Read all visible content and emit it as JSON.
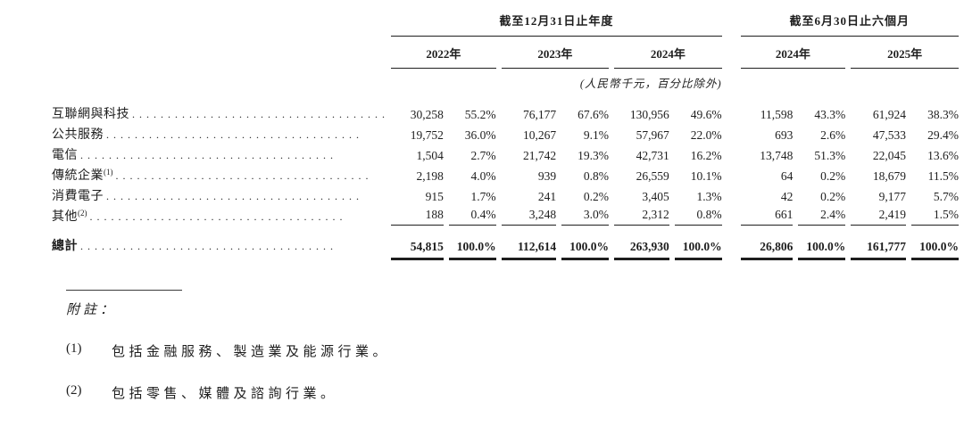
{
  "table": {
    "period_groups": [
      {
        "label": "截至12月31日止年度",
        "years": [
          "2022年",
          "2023年",
          "2024年"
        ]
      },
      {
        "label": "截至6月30日止六個月",
        "years": [
          "2024年",
          "2025年"
        ]
      }
    ],
    "unit_note": "(人民幣千元，百分比除外)",
    "rows": [
      {
        "label": "互聯網與科技",
        "sup": "",
        "values": [
          "30,258",
          "55.2%",
          "76,177",
          "67.6%",
          "130,956",
          "49.6%",
          "11,598",
          "43.3%",
          "61,924",
          "38.3%"
        ]
      },
      {
        "label": "公共服務",
        "sup": "",
        "values": [
          "19,752",
          "36.0%",
          "10,267",
          "9.1%",
          "57,967",
          "22.0%",
          "693",
          "2.6%",
          "47,533",
          "29.4%"
        ]
      },
      {
        "label": "電信",
        "sup": "",
        "values": [
          "1,504",
          "2.7%",
          "21,742",
          "19.3%",
          "42,731",
          "16.2%",
          "13,748",
          "51.3%",
          "22,045",
          "13.6%"
        ]
      },
      {
        "label": "傳統企業",
        "sup": "(1)",
        "values": [
          "2,198",
          "4.0%",
          "939",
          "0.8%",
          "26,559",
          "10.1%",
          "64",
          "0.2%",
          "18,679",
          "11.5%"
        ]
      },
      {
        "label": "消費電子",
        "sup": "",
        "values": [
          "915",
          "1.7%",
          "241",
          "0.2%",
          "3,405",
          "1.3%",
          "42",
          "0.2%",
          "9,177",
          "5.7%"
        ]
      },
      {
        "label": "其他",
        "sup": "(2)",
        "values": [
          "188",
          "0.4%",
          "3,248",
          "3.0%",
          "2,312",
          "0.8%",
          "661",
          "2.4%",
          "2,419",
          "1.5%"
        ]
      }
    ],
    "total": {
      "label": "總計",
      "values": [
        "54,815",
        "100.0%",
        "112,614",
        "100.0%",
        "263,930",
        "100.0%",
        "26,806",
        "100.0%",
        "161,777",
        "100.0%"
      ]
    }
  },
  "notes": {
    "heading": "附註：",
    "items": [
      {
        "marker": "(1)",
        "text": "包括金融服務、製造業及能源行業。"
      },
      {
        "marker": "(2)",
        "text": "包括零售、媒體及諮詢行業。"
      }
    ]
  }
}
